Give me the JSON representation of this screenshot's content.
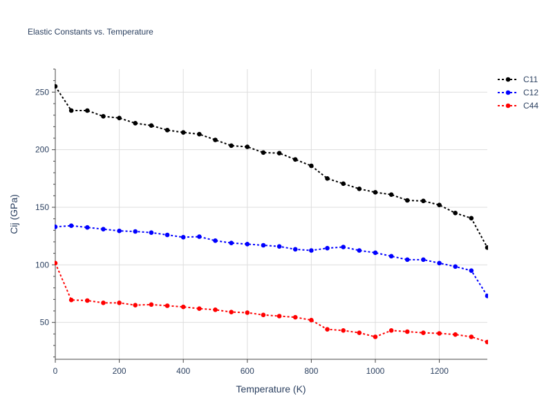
{
  "chart_data": {
    "type": "line",
    "title": "Elastic Constants vs. Temperature",
    "xlabel": "Temperature (K)",
    "ylabel": "Cij (GPa)",
    "xlim": [
      0,
      1350
    ],
    "ylim": [
      18,
      270
    ],
    "x_ticks": [
      0,
      200,
      400,
      600,
      800,
      1000,
      1200
    ],
    "y_ticks": [
      50,
      100,
      150,
      200,
      250
    ],
    "grid": true,
    "legend_position": "top-right",
    "x": [
      0,
      50,
      100,
      150,
      200,
      250,
      300,
      350,
      400,
      450,
      500,
      550,
      600,
      650,
      700,
      750,
      800,
      850,
      900,
      950,
      1000,
      1050,
      1100,
      1150,
      1200,
      1250,
      1300,
      1350
    ],
    "series": [
      {
        "name": "C11",
        "color": "#000000",
        "values": [
          255,
          234,
          234,
          229,
          227.5,
          223,
          221,
          217,
          215,
          213.5,
          208.5,
          203.5,
          202.5,
          197.5,
          197,
          191.5,
          186,
          175,
          170.5,
          166,
          163,
          161,
          156,
          155.5,
          152,
          145,
          140.5,
          115
        ]
      },
      {
        "name": "C12",
        "color": "#0000ff",
        "values": [
          133,
          134,
          132.5,
          131,
          129.5,
          129,
          128,
          126,
          124,
          124.5,
          121,
          119,
          118,
          117,
          116,
          113.5,
          112.5,
          114.5,
          115.5,
          112.5,
          110.5,
          107.5,
          104.5,
          104.5,
          101.5,
          98.5,
          95,
          73
        ]
      },
      {
        "name": "C44",
        "color": "#ff0000",
        "values": [
          101.5,
          69.5,
          69,
          67,
          67,
          65,
          65.5,
          64.5,
          63.5,
          62,
          61,
          59,
          58.5,
          56.5,
          55.5,
          54.5,
          52,
          44,
          43,
          41,
          37.5,
          43,
          42,
          41,
          40.5,
          39.5,
          37.5,
          33
        ]
      }
    ]
  }
}
